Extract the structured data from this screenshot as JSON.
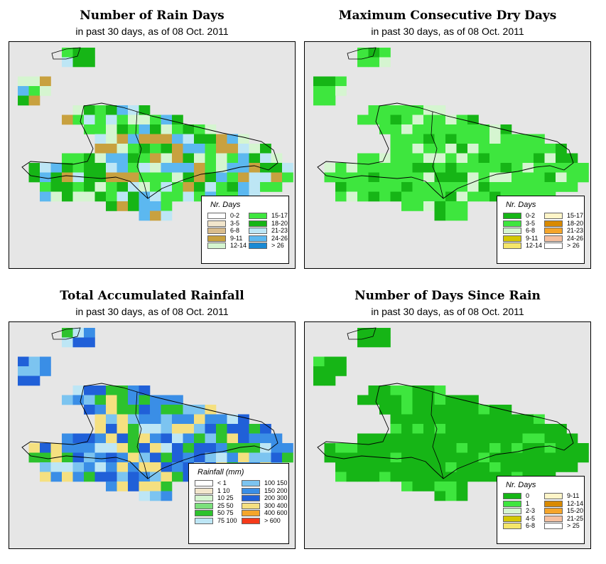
{
  "panels": [
    {
      "title": "Number of Rain Days",
      "subtitle": "in past 30 days, as of  08 Oct. 2011",
      "legend": {
        "title": "Nr. Days",
        "items": [
          {
            "label": "0-2",
            "color": "#ffffff"
          },
          {
            "label": "3-5",
            "color": "#f2e6cc"
          },
          {
            "label": "6-8",
            "color": "#d9bc8c"
          },
          {
            "label": "9-11",
            "color": "#c8a13f"
          },
          {
            "label": "12-14",
            "color": "#d5f5d0"
          },
          {
            "label": "15-17",
            "color": "#3ee63e"
          },
          {
            "label": "18-20",
            "color": "#16b516"
          },
          {
            "label": "21-23",
            "color": "#bde6f5"
          },
          {
            "label": "24-26",
            "color": "#5cb8f0"
          },
          {
            "label": "> 26",
            "color": "#1a8ad4"
          }
        ]
      }
    },
    {
      "title": "Maximum Consecutive Dry Days",
      "subtitle": "in past 30 days, as of  08 Oct. 2011",
      "legend": {
        "title": "Nr. Days",
        "items": [
          {
            "label": "0-2",
            "color": "#16b516"
          },
          {
            "label": "3-5",
            "color": "#3ee63e"
          },
          {
            "label": "6-8",
            "color": "#d5f5d0"
          },
          {
            "label": "9-11",
            "color": "#d4c800"
          },
          {
            "label": "12-14",
            "color": "#f5e66a"
          },
          {
            "label": "15-17",
            "color": "#fff5c8"
          },
          {
            "label": "18-20",
            "color": "#d98a00"
          },
          {
            "label": "21-23",
            "color": "#f5a52a"
          },
          {
            "label": "24-26",
            "color": "#f5c0a0"
          },
          {
            "label": "> 26",
            "color": "#ffffff"
          }
        ]
      }
    },
    {
      "title": "Total Accumulated Rainfall",
      "subtitle": "in past 30 days, as of  08 Oct. 2011",
      "legend": {
        "title": "Rainfall (mm)",
        "items": [
          {
            "label": "< 1",
            "color": "#ffffff"
          },
          {
            "label": "1   10",
            "color": "#f2e6cc"
          },
          {
            "label": "10   25",
            "color": "#d5f5d0"
          },
          {
            "label": "25   50",
            "color": "#7ce07c"
          },
          {
            "label": "50   75",
            "color": "#2dc22d"
          },
          {
            "label": "75   100",
            "color": "#bde6f5"
          },
          {
            "label": "100   150",
            "color": "#7cc4f0"
          },
          {
            "label": "150   200",
            "color": "#3a8ee6"
          },
          {
            "label": "200   300",
            "color": "#2060d8"
          },
          {
            "label": "300   400",
            "color": "#f5e080"
          },
          {
            "label": "400   600",
            "color": "#f5a52a"
          },
          {
            "label": "> 600",
            "color": "#f53a1a"
          }
        ]
      }
    },
    {
      "title": "Number of Days Since Rain",
      "subtitle": "in past 30 days, as of  08 Oct. 2011",
      "legend": {
        "title": "Nr. Days",
        "items": [
          {
            "label": "0",
            "color": "#16b516"
          },
          {
            "label": "1",
            "color": "#3ee63e"
          },
          {
            "label": "2-3",
            "color": "#d5f5d0"
          },
          {
            "label": "4-5",
            "color": "#d4c800"
          },
          {
            "label": "6-8",
            "color": "#f5e66a"
          },
          {
            "label": "9-11",
            "color": "#fff5c8"
          },
          {
            "label": "12-14",
            "color": "#d98a00"
          },
          {
            "label": "15-20",
            "color": "#f5a52a"
          },
          {
            "label": "21-25",
            "color": "#f5c0a0"
          },
          {
            "label": "> 25",
            "color": "#ffffff"
          }
        ]
      }
    }
  ]
}
